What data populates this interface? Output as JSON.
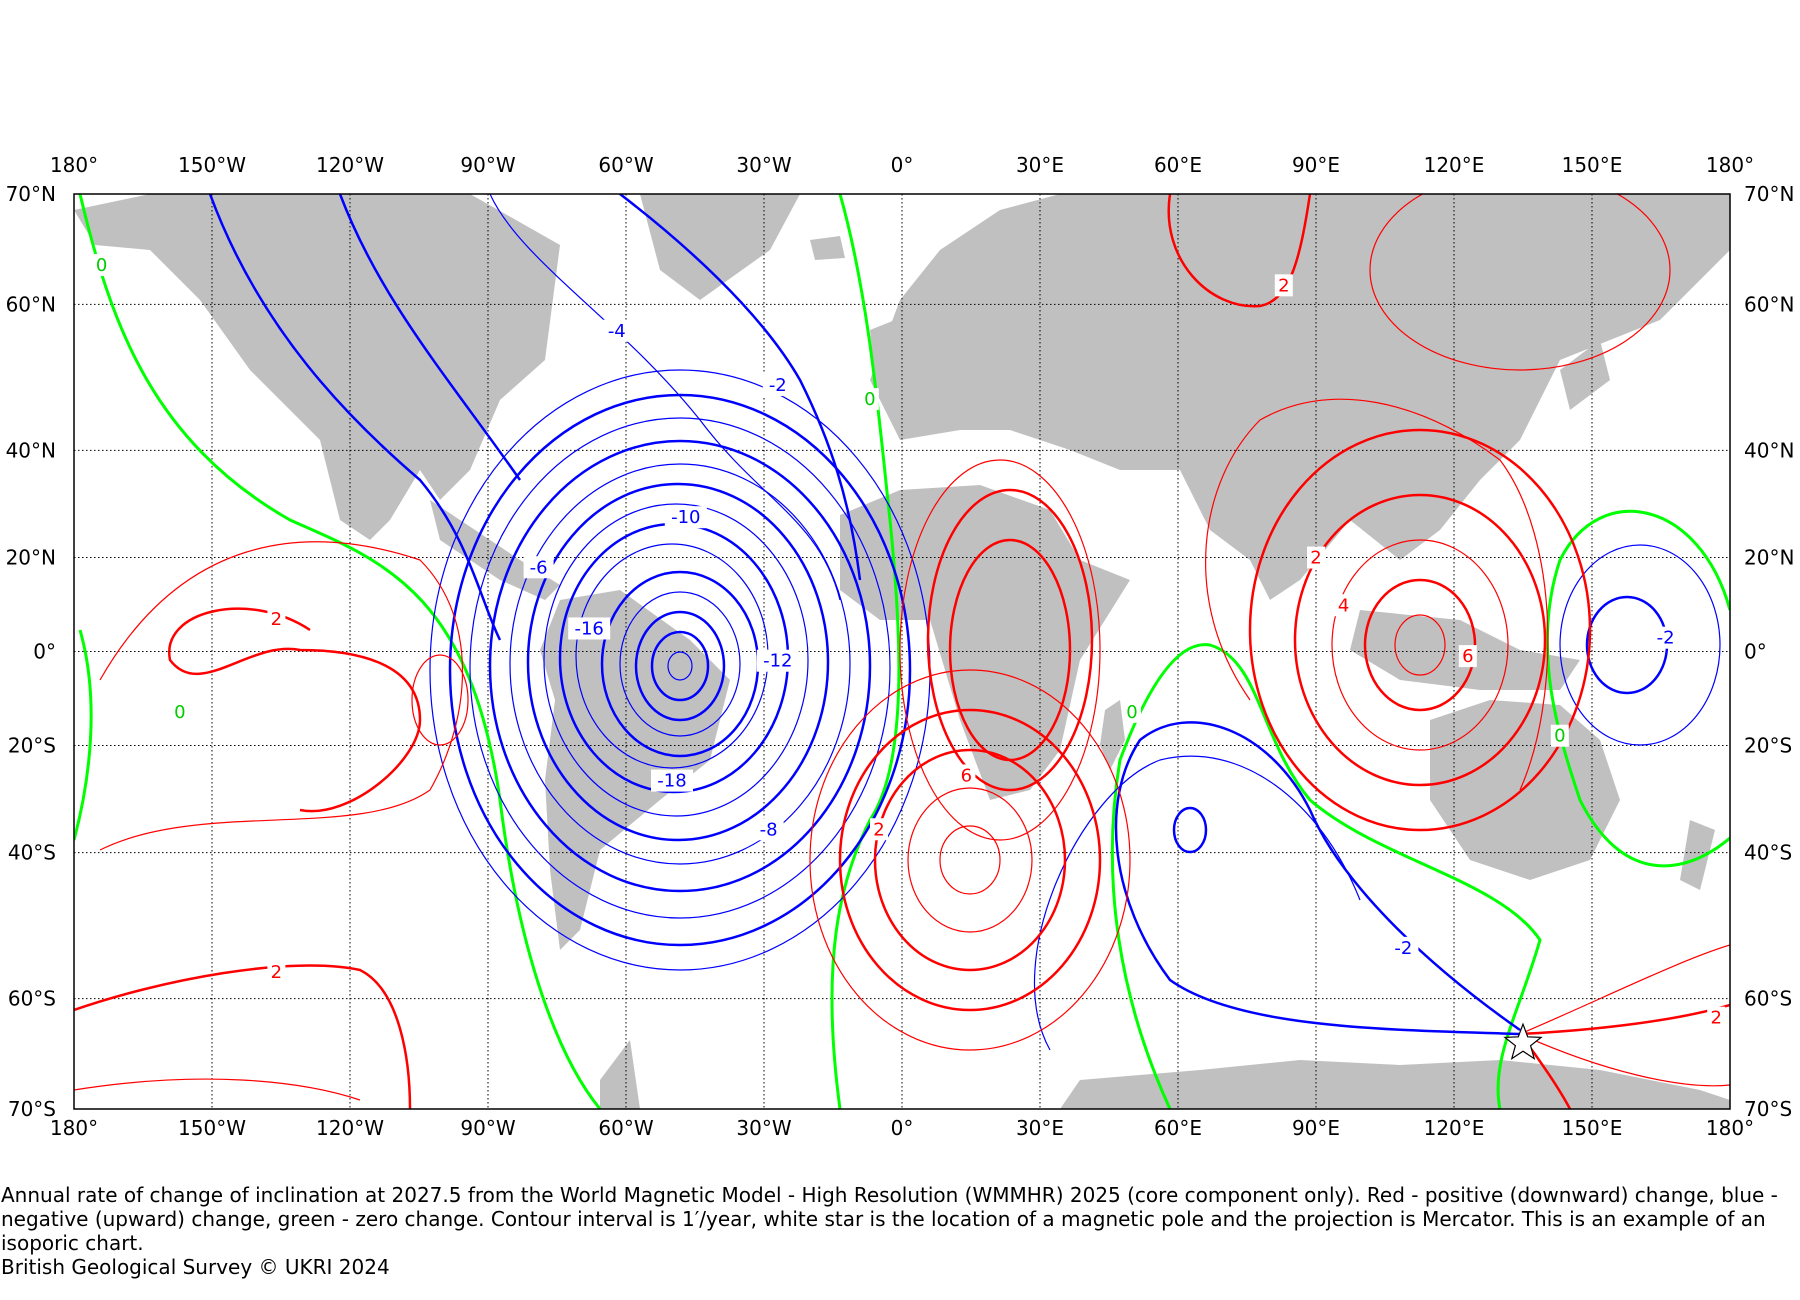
{
  "map": {
    "lon_ticks": [
      "180°",
      "150°W",
      "120°W",
      "90°W",
      "60°W",
      "30°W",
      "0°",
      "30°E",
      "60°E",
      "90°E",
      "120°E",
      "150°E",
      "180°"
    ],
    "lat_ticks": [
      "70°N",
      "60°N",
      "40°N",
      "20°N",
      "0°",
      "20°S",
      "40°S",
      "60°S",
      "70°S"
    ],
    "lat_values": [
      70,
      60,
      40,
      20,
      0,
      -20,
      -40,
      -60,
      -70
    ],
    "lon_values": [
      -180,
      -150,
      -120,
      -90,
      -60,
      -30,
      0,
      30,
      60,
      90,
      120,
      150,
      180
    ],
    "projection": "Mercator",
    "colors": {
      "positive": "#ff0000",
      "negative": "#0000ff",
      "zero": "#00ff00",
      "land": "#c0c0c0"
    },
    "contour_labels": [
      {
        "text": "0",
        "lon": -174,
        "lat": 64,
        "sign": "zero"
      },
      {
        "text": "0",
        "lon": -157,
        "lat": -13,
        "sign": "zero"
      },
      {
        "text": "2",
        "lon": -136,
        "lat": 7,
        "sign": "positive"
      },
      {
        "text": "2",
        "lon": -136,
        "lat": -57,
        "sign": "positive"
      },
      {
        "text": "-4",
        "lon": -62,
        "lat": 57,
        "sign": "negative"
      },
      {
        "text": "-2",
        "lon": -27,
        "lat": 50,
        "sign": "negative"
      },
      {
        "text": "0",
        "lon": -7,
        "lat": 48,
        "sign": "zero"
      },
      {
        "text": "-10",
        "lon": -47,
        "lat": 28,
        "sign": "negative"
      },
      {
        "text": "-6",
        "lon": -79,
        "lat": 18,
        "sign": "negative"
      },
      {
        "text": "-16",
        "lon": -68,
        "lat": 5,
        "sign": "negative"
      },
      {
        "text": "-12",
        "lon": -27,
        "lat": -2,
        "sign": "negative"
      },
      {
        "text": "-18",
        "lon": -50,
        "lat": -27,
        "sign": "negative"
      },
      {
        "text": "-8",
        "lon": -29,
        "lat": -36,
        "sign": "negative"
      },
      {
        "text": "2",
        "lon": -5,
        "lat": -36,
        "sign": "positive"
      },
      {
        "text": "6",
        "lon": 14,
        "lat": -26,
        "sign": "positive"
      },
      {
        "text": "0",
        "lon": 50,
        "lat": -13,
        "sign": "zero"
      },
      {
        "text": "2",
        "lon": 83,
        "lat": 62,
        "sign": "positive"
      },
      {
        "text": "2",
        "lon": 90,
        "lat": 20,
        "sign": "positive"
      },
      {
        "text": "4",
        "lon": 96,
        "lat": 10,
        "sign": "positive"
      },
      {
        "text": "6",
        "lon": 123,
        "lat": -1,
        "sign": "positive"
      },
      {
        "text": "0",
        "lon": 143,
        "lat": -18,
        "sign": "zero"
      },
      {
        "text": "-2",
        "lon": 166,
        "lat": 3,
        "sign": "negative"
      },
      {
        "text": "-2",
        "lon": 109,
        "lat": -54,
        "sign": "negative"
      },
      {
        "text": "2",
        "lon": 177,
        "lat": -62,
        "sign": "positive"
      }
    ],
    "magnetic_pole": {
      "lon": 135,
      "lat": -64.5
    }
  },
  "caption": {
    "main": "Annual rate of change of inclination at 2027.5 from the World Magnetic Model - High Resolution (WMMHR) 2025 (core component only). Red - positive (downward) change, blue - negative (upward) change, green - zero change. Contour interval is 1′/year, white star is the location of a magnetic pole and the projection is Mercator. This is an example of an isoporic chart.",
    "credit": "British Geological Survey © UKRI 2024"
  }
}
